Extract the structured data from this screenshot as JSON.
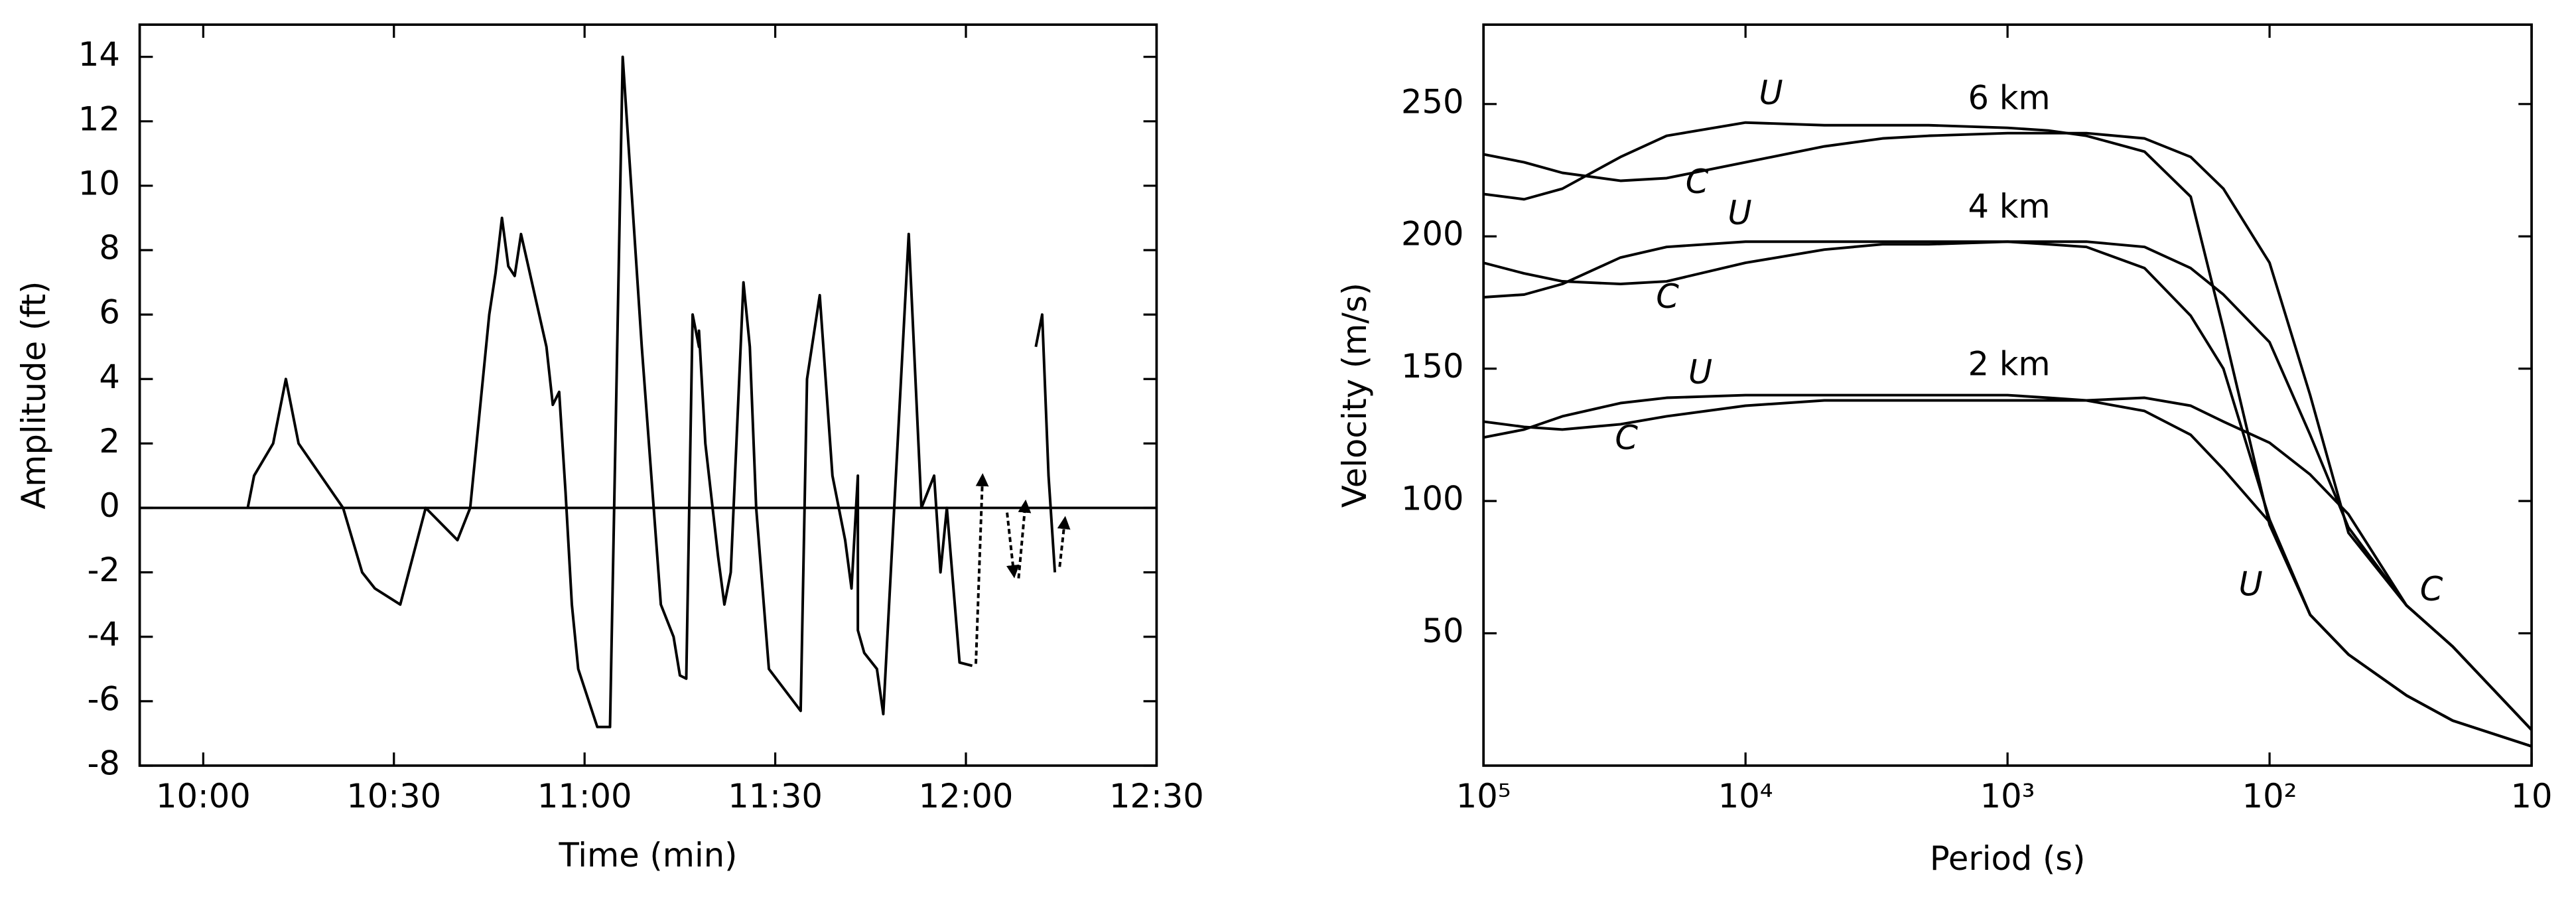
{
  "chart_data": [
    {
      "type": "line",
      "xlabel": "Time (min)",
      "ylabel": "Amplitude (ft)",
      "x": [
        "10:07",
        "10:08",
        "10:11",
        "10:13",
        "10:15",
        "10:22",
        "10:25",
        "10:27",
        "10:31",
        "10:35",
        "10:40",
        "10:42",
        "10:45",
        "10:46",
        "10:47",
        "10:48",
        "10:49",
        "10:50",
        "10:54",
        "10:55",
        "10:56",
        "10:57",
        "10:58",
        "10:59",
        "11:02",
        "11:04",
        "11:06",
        "11:09",
        "11:12",
        "11:14",
        "11:15",
        "11:16",
        "11:17",
        "11:18",
        "11:18",
        "11:19",
        "11:21",
        "11:22",
        "11:23",
        "11:25",
        "11:26",
        "11:27",
        "11:29",
        "11:34",
        "11:35",
        "11:37",
        "11:39",
        "11:41",
        "11:42",
        "11:43",
        "11:43",
        "11:44",
        "11:46",
        "11:47",
        "11:51",
        "11:53",
        "11:55",
        "11:56",
        "11:57",
        "11:59",
        "12:01",
        "12:05",
        "12:11",
        "12:12",
        "12:13",
        "12:14"
      ],
      "series": [
        {
          "color": "#000000",
          "values": [
            0,
            1,
            2,
            4,
            2,
            0,
            -2,
            -2.5,
            -3,
            0,
            -1,
            0,
            6,
            7.3,
            9,
            7.5,
            7.2,
            8.5,
            5,
            3.2,
            3.6,
            0.5,
            -3,
            -5,
            -6.8,
            -6.8,
            14,
            5,
            -3,
            -4,
            -5.2,
            -5.3,
            6,
            5,
            5.5,
            2,
            -1.5,
            -3,
            -2,
            7,
            5,
            0,
            -5,
            -6.3,
            4,
            6.6,
            1,
            -1,
            -2.5,
            1,
            -3.8,
            -4.5,
            -5,
            -6.4,
            8.5,
            0,
            1,
            -2,
            0,
            -4.8,
            -4.9,
            null,
            5,
            6,
            1,
            -2
          ]
        }
      ],
      "xlim": [
        "09:50",
        "12:30"
      ],
      "xticks": [
        "10:00",
        "10:30",
        "11:00",
        "11:30",
        "12:00",
        "12:30"
      ],
      "ylim": [
        -8,
        15
      ],
      "yticks": [
        -8,
        -6,
        -4,
        -2,
        0,
        2,
        4,
        6,
        8,
        10,
        12,
        14
      ],
      "zero_line": true
    },
    {
      "type": "line",
      "xlabel": "Period (s)",
      "ylabel": "Velocity (m/s)",
      "xscale": "log",
      "x": [
        100000,
        70000,
        50000,
        30000,
        20000,
        10000,
        5000,
        3000,
        2000,
        1000,
        700,
        500,
        300,
        200,
        150,
        100,
        70,
        50,
        30,
        20,
        10
      ],
      "series": [
        {
          "name": "U",
          "color": "#000000",
          "values": [
            216,
            214,
            218,
            230,
            238,
            243,
            242,
            242,
            242,
            241,
            240,
            238,
            232,
            215,
            165,
            91,
            57,
            42,
            26.5,
            17,
            7.3
          ]
        },
        {
          "name": "C",
          "color": "#000000",
          "values": [
            231,
            228,
            224,
            221,
            222,
            228,
            234,
            237,
            238,
            239,
            239,
            239,
            237,
            230,
            218,
            190,
            140,
            88,
            60.5,
            45,
            13.5
          ]
        },
        {
          "name": "U",
          "color": "#000000",
          "values": [
            177,
            178,
            182,
            192,
            196,
            198,
            198,
            198,
            198,
            198,
            197,
            196,
            188,
            170,
            150,
            93,
            57,
            42,
            26.5,
            17,
            7.3
          ]
        },
        {
          "name": "C",
          "color": "#000000",
          "values": [
            190,
            186,
            183,
            182,
            183,
            190,
            195,
            197,
            197,
            198,
            198,
            198,
            196,
            188,
            178,
            160,
            125,
            90,
            60.5,
            45,
            13.5
          ]
        },
        {
          "name": "U",
          "color": "#000000",
          "values": [
            124,
            127,
            132,
            137,
            139,
            140,
            140,
            140,
            140,
            140,
            139,
            138,
            134,
            125,
            112,
            92,
            57,
            42,
            26.5,
            17,
            7.3
          ]
        },
        {
          "name": "C",
          "color": "#000000",
          "values": [
            130,
            128,
            127,
            129,
            132,
            136,
            138,
            138,
            138,
            138,
            138,
            138,
            139,
            136,
            130,
            122,
            110,
            95,
            60.5,
            45,
            13.5
          ]
        }
      ],
      "annotations": [
        "6 km",
        "4 km",
        "2 km",
        "U",
        "C"
      ],
      "xlim": [
        100000,
        10
      ],
      "xticks": [
        {
          "value": 100000,
          "label": "10⁵"
        },
        {
          "value": 10000,
          "label": "10⁴"
        },
        {
          "value": 1000,
          "label": "10³"
        },
        {
          "value": 100,
          "label": "10²"
        },
        10
      ],
      "ylim": [
        0,
        280
      ],
      "yticks": [
        50,
        100,
        150,
        200,
        250
      ]
    }
  ]
}
